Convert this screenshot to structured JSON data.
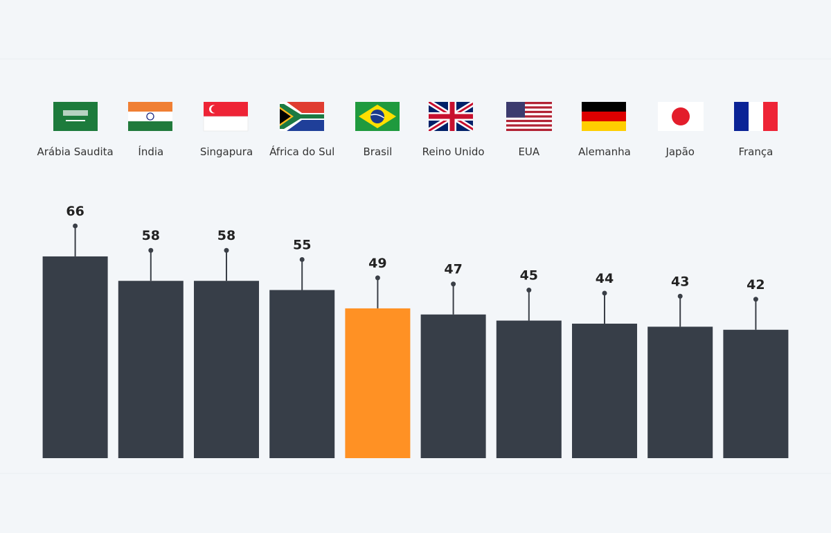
{
  "chart_data": {
    "type": "bar",
    "categories": [
      "Arábia Saudita",
      "Índia",
      "Singapura",
      "África do Sul",
      "Brasil",
      "Reino Unido",
      "EUA",
      "Alemanha",
      "Japão",
      "França"
    ],
    "values": [
      66,
      58,
      58,
      55,
      49,
      47,
      45,
      44,
      43,
      42
    ],
    "colors": [
      "#373e48",
      "#373e48",
      "#373e48",
      "#373e48",
      "#ff9124",
      "#373e48",
      "#373e48",
      "#373e48",
      "#373e48",
      "#373e48"
    ]
  }
}
